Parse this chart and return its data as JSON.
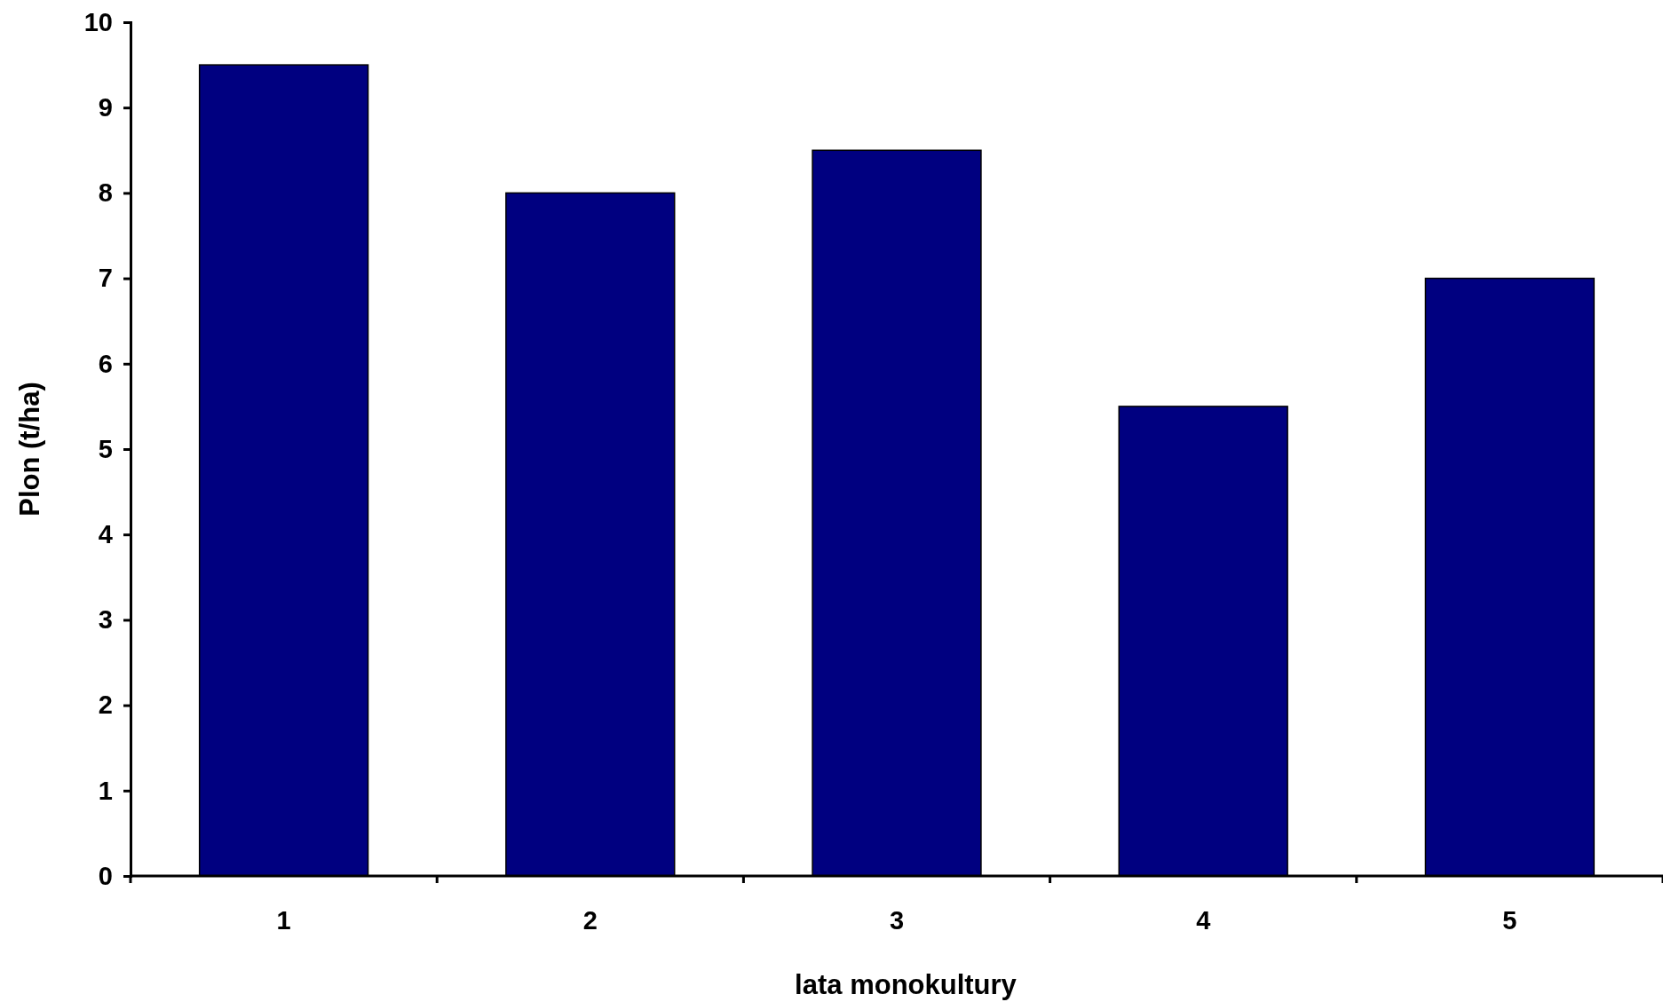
{
  "chart_data": {
    "type": "bar",
    "xlabel": "lata monokultury",
    "ylabel": "Plon (t/ha)",
    "categories": [
      "1",
      "2",
      "3",
      "4",
      "5"
    ],
    "values": [
      9.5,
      8,
      8.5,
      5.5,
      7
    ],
    "color": "#000080",
    "ylim": [
      0,
      10
    ],
    "yticks": [
      0,
      1,
      2,
      3,
      4,
      5,
      6,
      7,
      8,
      9,
      10
    ],
    "grid": false
  }
}
